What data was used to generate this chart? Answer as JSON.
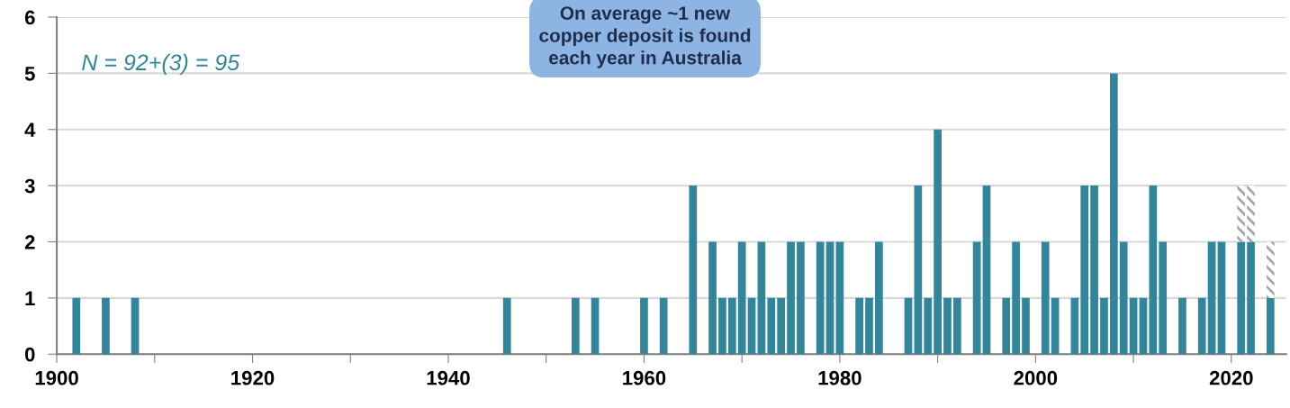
{
  "chart_data": {
    "type": "bar",
    "stacked": true,
    "x": [
      1902,
      1905,
      1908,
      1946,
      1953,
      1955,
      1960,
      1962,
      1965,
      1967,
      1968,
      1969,
      1970,
      1971,
      1972,
      1973,
      1974,
      1975,
      1976,
      1978,
      1979,
      1980,
      1982,
      1983,
      1984,
      1987,
      1988,
      1989,
      1990,
      1991,
      1992,
      1994,
      1995,
      1997,
      1998,
      1999,
      2001,
      2002,
      2004,
      2005,
      2006,
      2007,
      2008,
      2009,
      2010,
      2011,
      2012,
      2013,
      2015,
      2017,
      2018,
      2019,
      2021,
      2022,
      2024
    ],
    "series": [
      {
        "color": "#31869b",
        "values": [
          1,
          1,
          1,
          1,
          1,
          1,
          1,
          1,
          3,
          2,
          1,
          1,
          2,
          1,
          2,
          1,
          1,
          2,
          2,
          2,
          2,
          2,
          1,
          1,
          2,
          1,
          3,
          1,
          4,
          1,
          1,
          2,
          3,
          1,
          2,
          1,
          2,
          1,
          1,
          3,
          3,
          1,
          5,
          2,
          1,
          1,
          3,
          2,
          1,
          1,
          2,
          2,
          2,
          2,
          1
        ]
      },
      {
        "color": "#a6a6a6",
        "values": [
          null,
          null,
          null,
          null,
          null,
          null,
          null,
          null,
          null,
          null,
          null,
          null,
          null,
          null,
          null,
          null,
          null,
          null,
          null,
          null,
          null,
          null,
          null,
          null,
          null,
          null,
          null,
          null,
          null,
          null,
          null,
          null,
          null,
          null,
          null,
          null,
          null,
          null,
          null,
          null,
          null,
          null,
          null,
          null,
          null,
          null,
          null,
          null,
          null,
          null,
          null,
          null,
          1,
          1,
          1
        ]
      }
    ],
    "xlim": [
      1900,
      2025.6
    ],
    "xticks": [
      1900,
      {
        "value": 1910,
        "label": null
      },
      1920,
      {
        "value": 1930,
        "label": null
      },
      1940,
      {
        "value": 1950,
        "label": null
      },
      1960,
      {
        "value": 1970,
        "label": null
      },
      1980,
      {
        "value": 1990,
        "label": null
      },
      2000,
      {
        "value": 2010,
        "label": null
      },
      2020
    ],
    "ylim": [
      0,
      6
    ],
    "yticks": [
      0,
      1,
      2,
      3,
      4,
      5,
      6
    ],
    "grid": "y",
    "legend": false,
    "annotations": [
      "N = 92+(3) = 95",
      "On average ~1 new\ncopper deposit is found\neach year in Australia"
    ]
  }
}
